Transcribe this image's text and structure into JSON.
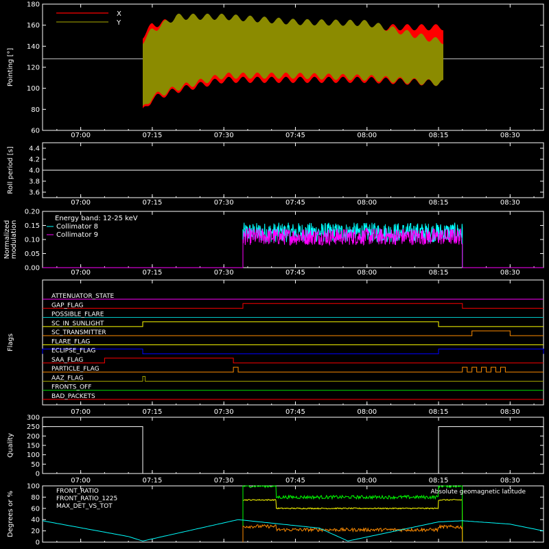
{
  "time_ticks": [
    "07:00",
    "07:15",
    "07:30",
    "07:45",
    "08:00",
    "08:15",
    "08:30"
  ],
  "colors": {
    "background": "#000000",
    "axis": "#ffffff",
    "red": "#ff0000",
    "olive": "#8b8b00",
    "white": "#ffffff",
    "cyan": "#00ffff",
    "magenta": "#ff00ff",
    "blue": "#0000ff",
    "yellow": "#ffff00",
    "orange": "#ff8c00",
    "green": "#00ff00",
    "teal": "#00c8c8",
    "dark_yellow": "#a0a000",
    "lime": "#00e000"
  },
  "chart_data": [
    {
      "type": "area",
      "ylabel": "Pointing [°]",
      "ylim": [
        60,
        180
      ],
      "yticks": [
        60,
        80,
        100,
        120,
        140,
        160,
        180
      ],
      "time_range": [
        "06:52",
        "08:37"
      ],
      "reference_line": {
        "y": 128,
        "color": "#c8c8c8"
      },
      "legend": [
        {
          "name": "X",
          "color": "#ff0000"
        },
        {
          "name": "Y",
          "color": "#8b8b00"
        }
      ],
      "series": [
        {
          "name": "X",
          "color": "#ff0000",
          "data_start": "07:13",
          "data_end": "08:16",
          "envelope": [
            [
              "07:13",
              78,
              150
            ],
            [
              "07:15",
              90,
              160
            ],
            [
              "07:20",
              98,
              165
            ],
            [
              "07:30",
              108,
              162
            ],
            [
              "07:45",
              108,
              160
            ],
            [
              "08:00",
              108,
              158
            ],
            [
              "08:15",
              105,
              158
            ]
          ]
        },
        {
          "name": "Y",
          "color": "#8b8b00",
          "data_start": "07:13",
          "data_end": "08:16",
          "envelope": [
            [
              "07:13",
              80,
              145
            ],
            [
              "07:15",
              92,
              155
            ],
            [
              "07:20",
              100,
              168
            ],
            [
              "07:30",
              112,
              168
            ],
            [
              "07:45",
              112,
              163
            ],
            [
              "08:00",
              110,
              162
            ],
            [
              "08:15",
              105,
              145
            ]
          ]
        }
      ]
    },
    {
      "type": "line",
      "ylabel": "Roll period [s]",
      "ylim": [
        3.5,
        4.5
      ],
      "yticks": [
        3.6,
        3.8,
        4.0,
        4.2,
        4.4
      ],
      "series": [
        {
          "name": "",
          "color": "#ffffff",
          "value": 4.0
        }
      ]
    },
    {
      "type": "line",
      "ylabel": "Normalized modulation",
      "ylim": [
        0.0,
        0.2
      ],
      "yticks": [
        0.0,
        0.05,
        0.1,
        0.15,
        0.2
      ],
      "annotation": "Energy band: 12-25 keV",
      "legend": [
        {
          "name": "Collimator 8",
          "color": "#00ffff"
        },
        {
          "name": "Collimator 9",
          "color": "#ff00ff"
        }
      ],
      "series": [
        {
          "name": "Collimator 8",
          "color": "#00ffff",
          "data_start": "07:34",
          "data_end": "08:20",
          "typical_range": [
            0.09,
            0.16
          ]
        },
        {
          "name": "Collimator 9",
          "color": "#ff00ff",
          "data_start": "07:34",
          "data_end": "08:20",
          "typical_range": [
            0.08,
            0.14
          ]
        }
      ]
    },
    {
      "type": "line",
      "ylabel": "Flags",
      "flags": [
        {
          "name": "ATTENUATOR_STATE",
          "color": "#ff00ff",
          "on": []
        },
        {
          "name": "GAP_FLAG",
          "color": "#ff0000",
          "on": [
            [
              "07:34",
              "08:20"
            ]
          ]
        },
        {
          "name": "POSSIBLE_FLARE",
          "color": "#00c8c8",
          "on": []
        },
        {
          "name": "SC_IN_SUNLIGHT",
          "color": "#ffff00",
          "on": [
            [
              "07:13",
              "08:15"
            ]
          ]
        },
        {
          "name": "SC_TRANSMITTER",
          "color": "#ff8c00",
          "on": [
            [
              "08:22",
              "08:30"
            ]
          ]
        },
        {
          "name": "FLARE_FLAG",
          "color": "#ffff00",
          "on": []
        },
        {
          "name": "ECLIPSE_FLAG",
          "color": "#0000ff",
          "on": [
            [
              "06:52",
              "07:13"
            ],
            [
              "08:15",
              "08:37"
            ]
          ]
        },
        {
          "name": "SAA_FLAG",
          "color": "#ff0000",
          "on": [
            [
              "07:05",
              "07:32"
            ]
          ]
        },
        {
          "name": "PARTICLE_FLAG",
          "color": "#ff8c00",
          "on": [
            [
              "07:32",
              "07:33"
            ],
            [
              "08:20",
              "08:21"
            ],
            [
              "08:22",
              "08:23"
            ],
            [
              "08:24",
              "08:25"
            ],
            [
              "08:26",
              "08:27"
            ],
            [
              "08:28",
              "08:29"
            ]
          ]
        },
        {
          "name": "AAZ_FLAG",
          "color": "#a0a000",
          "on": [
            [
              "07:13",
              "07:13.5"
            ]
          ]
        },
        {
          "name": "FRONTS_OFF",
          "color": "#00e000",
          "on": []
        },
        {
          "name": "BAD_PACKETS",
          "color": "#ff0000",
          "on": []
        }
      ]
    },
    {
      "type": "line",
      "ylabel": "Quality",
      "ylim": [
        0,
        300
      ],
      "yticks": [
        0,
        50,
        100,
        150,
        200,
        250,
        300
      ],
      "series": [
        {
          "name": "",
          "color": "#ffffff",
          "steps": [
            [
              "06:52",
              250
            ],
            [
              "07:13",
              0
            ],
            [
              "08:15",
              250
            ],
            [
              "08:37",
              250
            ]
          ]
        }
      ]
    },
    {
      "type": "line",
      "ylabel": "Degrees or %",
      "ylim": [
        0,
        100
      ],
      "yticks": [
        0,
        20,
        40,
        60,
        80,
        100
      ],
      "legend": [
        {
          "name": "FRONT_RATIO",
          "color": "#ffff00"
        },
        {
          "name": "FRONT_RATIO_1225",
          "color": "#00ff00"
        },
        {
          "name": "MAX_DET_VS_TOT",
          "color": "#ff8c00"
        },
        {
          "name": "Absolute geomagnetic latitude",
          "color": "#00ffff"
        }
      ],
      "series": [
        {
          "name": "FRONT_RATIO",
          "color": "#ffff00",
          "levels": [
            [
              "07:34",
              "07:41",
              75
            ],
            [
              "07:41",
              "08:15",
              60
            ],
            [
              "08:15",
              "08:20",
              75
            ]
          ]
        },
        {
          "name": "FRONT_RATIO_1225",
          "color": "#00ff00",
          "levels": [
            [
              "07:34",
              "07:41",
              100
            ],
            [
              "07:41",
              "08:15",
              80
            ],
            [
              "08:15",
              "08:20",
              100
            ]
          ]
        },
        {
          "name": "MAX_DET_VS_TOT",
          "color": "#ff8c00",
          "levels": [
            [
              "07:34",
              "07:41",
              28
            ],
            [
              "07:41",
              "08:15",
              22
            ],
            [
              "08:15",
              "08:20",
              27
            ]
          ]
        },
        {
          "name": "Absolute geomagnetic latitude",
          "color": "#00ffff",
          "points": [
            [
              "06:52",
              38
            ],
            [
              "07:10",
              10
            ],
            [
              "07:13",
              2
            ],
            [
              "07:33",
              40
            ],
            [
              "07:50",
              25
            ],
            [
              "07:56",
              2
            ],
            [
              "08:15",
              36
            ],
            [
              "08:20",
              38
            ],
            [
              "08:30",
              32
            ],
            [
              "08:37",
              20
            ]
          ]
        }
      ]
    }
  ]
}
